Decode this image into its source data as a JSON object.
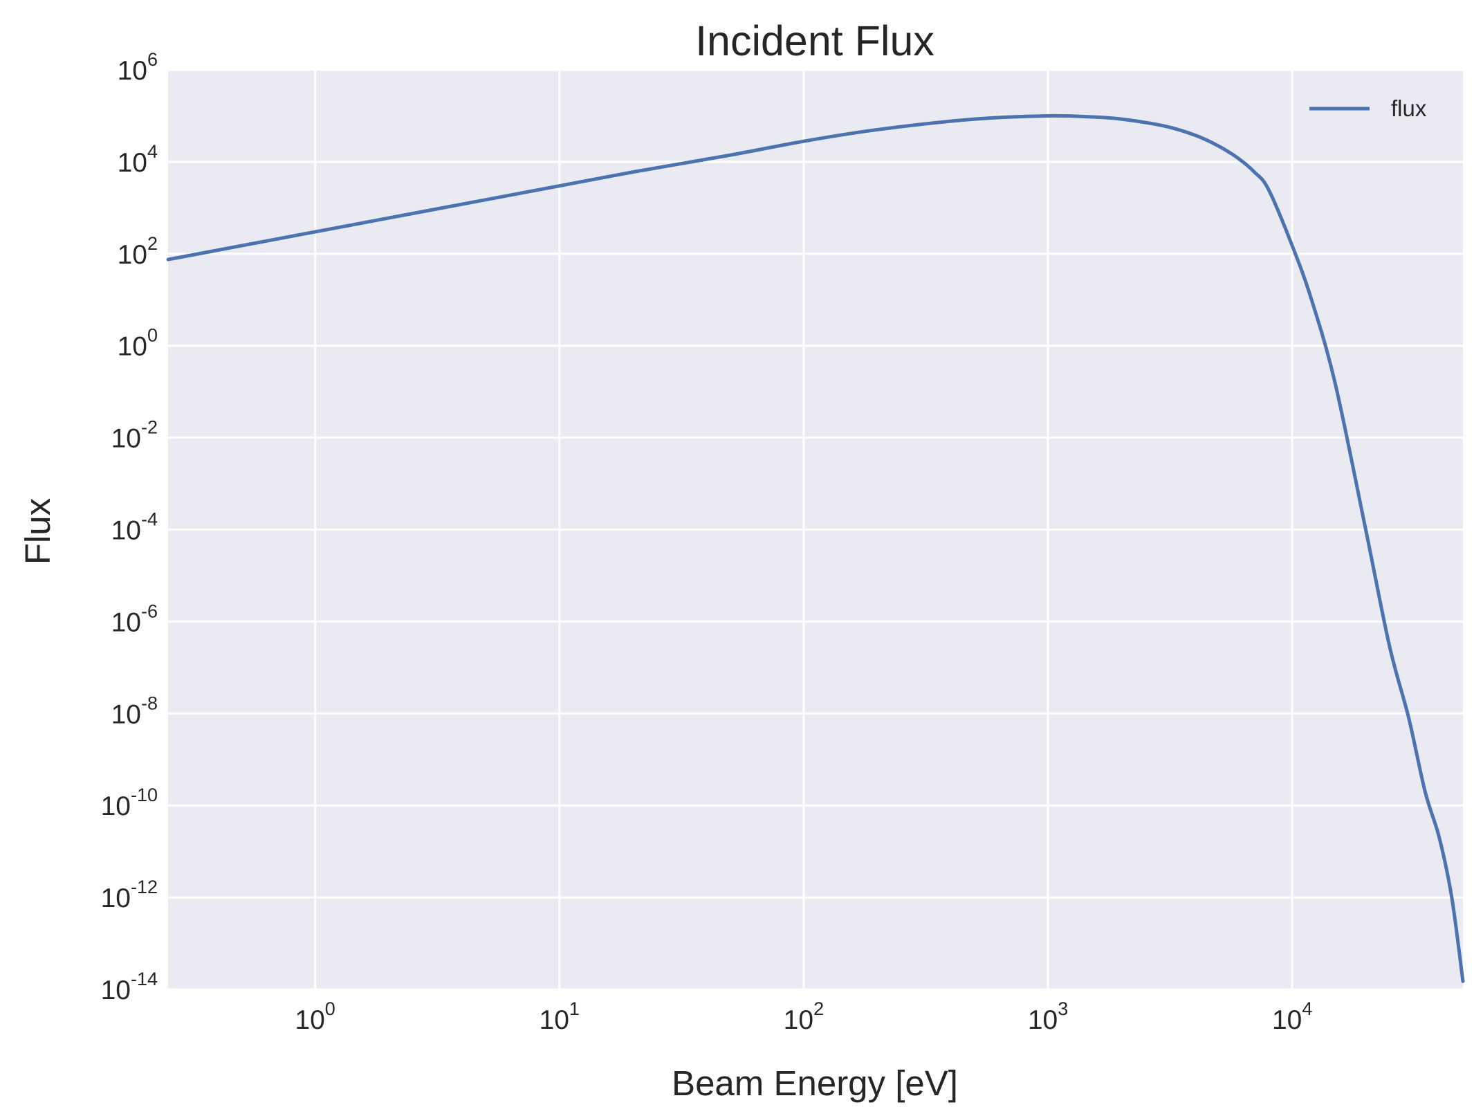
{
  "chart_data": {
    "type": "line",
    "title": "Incident Flux",
    "xlabel": "Beam Energy [eV]",
    "ylabel": "Flux",
    "x_scale": "log",
    "y_scale": "log",
    "xlim": [
      0.25,
      50000
    ],
    "ylim": [
      1e-14,
      1000000.0
    ],
    "grid": true,
    "background_color": "#EAEAF2",
    "grid_color": "#FFFFFF",
    "line_color": "#4C72B0",
    "legend_position": "top-right",
    "x_ticks": [
      {
        "base": "10",
        "exp": "0",
        "value": 1
      },
      {
        "base": "10",
        "exp": "1",
        "value": 10
      },
      {
        "base": "10",
        "exp": "2",
        "value": 100
      },
      {
        "base": "10",
        "exp": "3",
        "value": 1000
      },
      {
        "base": "10",
        "exp": "4",
        "value": 10000
      }
    ],
    "y_ticks": [
      {
        "base": "10",
        "exp": "6",
        "value": 1000000.0
      },
      {
        "base": "10",
        "exp": "4",
        "value": 10000.0
      },
      {
        "base": "10",
        "exp": "2",
        "value": 100.0
      },
      {
        "base": "10",
        "exp": "0",
        "value": 1.0
      },
      {
        "base": "10",
        "exp": "-2",
        "value": 0.01
      },
      {
        "base": "10",
        "exp": "-4",
        "value": 0.0001
      },
      {
        "base": "10",
        "exp": "-6",
        "value": 1e-06
      },
      {
        "base": "10",
        "exp": "-8",
        "value": 1e-08
      },
      {
        "base": "10",
        "exp": "-10",
        "value": 1e-10
      },
      {
        "base": "10",
        "exp": "-12",
        "value": 1e-12
      },
      {
        "base": "10",
        "exp": "-14",
        "value": 1e-14
      }
    ],
    "series": [
      {
        "name": "flux",
        "x": [
          0.25,
          0.5,
          1,
          2,
          5,
          10,
          20,
          50,
          100,
          200,
          500,
          1000,
          1500,
          2000,
          3000,
          4000,
          5000,
          6000,
          7000,
          8000,
          10000,
          12000,
          15000,
          20000,
          25000,
          30000,
          35000,
          40000,
          45000,
          50000
        ],
        "y": [
          75,
          150,
          300,
          600,
          1500,
          3000,
          6000,
          14000,
          28000,
          50000,
          85000,
          100000,
          95000,
          85000,
          60000,
          38000,
          22000,
          12000,
          6000,
          2500,
          150,
          10,
          0.15,
          0.0001,
          3e-07,
          8e-09,
          2e-10,
          2e-11,
          1e-12,
          1.5e-14
        ]
      }
    ]
  }
}
